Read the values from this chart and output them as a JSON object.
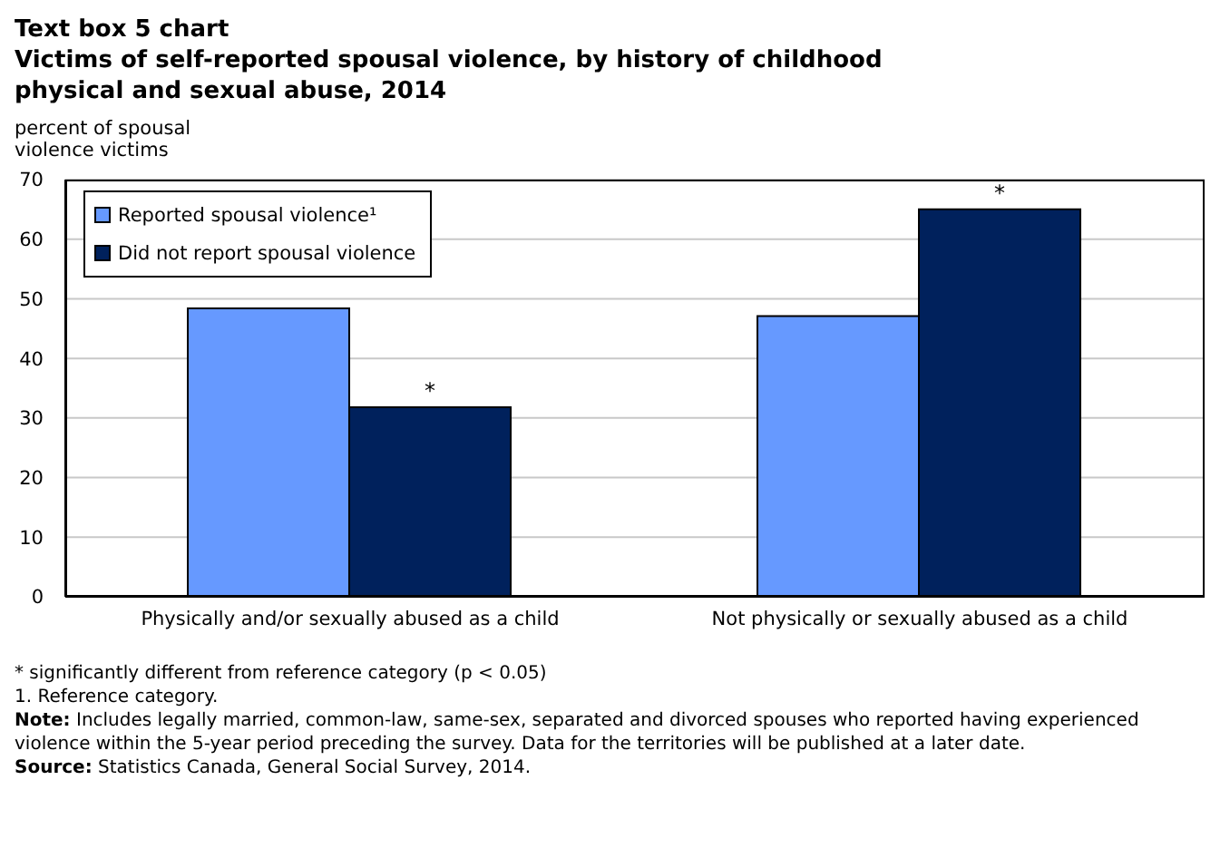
{
  "chart_data": {
    "type": "bar",
    "title": "Text box 5 chart",
    "subtitle": "Victims of self-reported spousal violence, by history of childhood physical and sexual abuse, 2014",
    "ylabel": "percent of spousal violence victims",
    "categories": [
      "Physically and/or sexually abused as a child",
      "Not physically or sexually abused as a child"
    ],
    "series": [
      {
        "name": "Reported spousal violence¹",
        "color": "#6699ff",
        "values": [
          48.4,
          47.1
        ]
      },
      {
        "name": "Did not report spousal violence",
        "color": "#00215c",
        "values": [
          31.8,
          65.0
        ],
        "value_labels": [
          "*",
          "*"
        ]
      }
    ],
    "ylim": [
      0,
      70
    ],
    "yticks": [
      0,
      10,
      20,
      30,
      40,
      50,
      60,
      70
    ],
    "grid": "y",
    "legend": "top left",
    "annotations": [
      "* significantly different from reference category (p < 0.05)",
      "1. Reference category.",
      "Note: Includes legally married, common-law, same-sex, separated and divorced spouses who reported having experienced violence within the 5-year period preceding the survey. Data for the territories will be published at a later date.",
      "Source: Statistics Canada, General Social Survey, 2014."
    ]
  }
}
